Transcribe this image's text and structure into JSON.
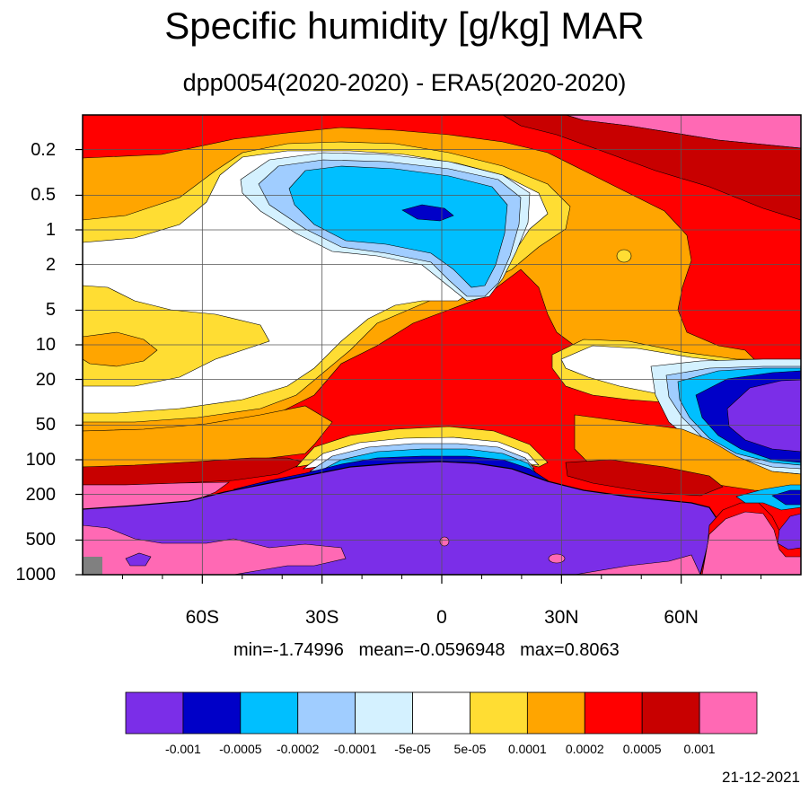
{
  "chart_data": {
    "type": "heatmap",
    "title": "Specific humidity [g/kg] MAR",
    "subtitle": "dpp0054(2020-2020) - ERA5(2020-2020)",
    "x_axis": {
      "range": [
        -90,
        90
      ],
      "ticks": [
        -60,
        -30,
        0,
        30,
        60
      ],
      "tick_labels": [
        "60S",
        "30S",
        "0",
        "30N",
        "60N"
      ]
    },
    "y_axis": {
      "scale": "log",
      "reversed": true,
      "range": [
        0.1,
        1000
      ],
      "ticks": [
        0.2,
        0.5,
        1,
        2,
        5,
        10,
        20,
        50,
        100,
        200,
        500,
        1000
      ],
      "tick_labels": [
        "0.2",
        "0.5",
        "1",
        "2",
        "5",
        "10",
        "20",
        "50",
        "100",
        "200",
        "500",
        "1000"
      ]
    },
    "grid": true,
    "stats_text": "min=-1.74996   mean=-0.0596948   max=0.8063",
    "colorbar": {
      "placement": "bottom",
      "colors": [
        "#7b2ee8",
        "#0000c8",
        "#00bfff",
        "#a0cdff",
        "#d4f1ff",
        "#ffffff",
        "#ffdd33",
        "#ffa500",
        "#ff0000",
        "#c80000",
        "#ff69b4"
      ],
      "levels": [
        "-0.001",
        "-0.0005",
        "-0.0002",
        "-0.0001",
        "-5e-05",
        "5e-05",
        "0.0001",
        "0.0002",
        "0.0005",
        "0.001"
      ]
    }
  },
  "date_stamp": "21-12-2021"
}
